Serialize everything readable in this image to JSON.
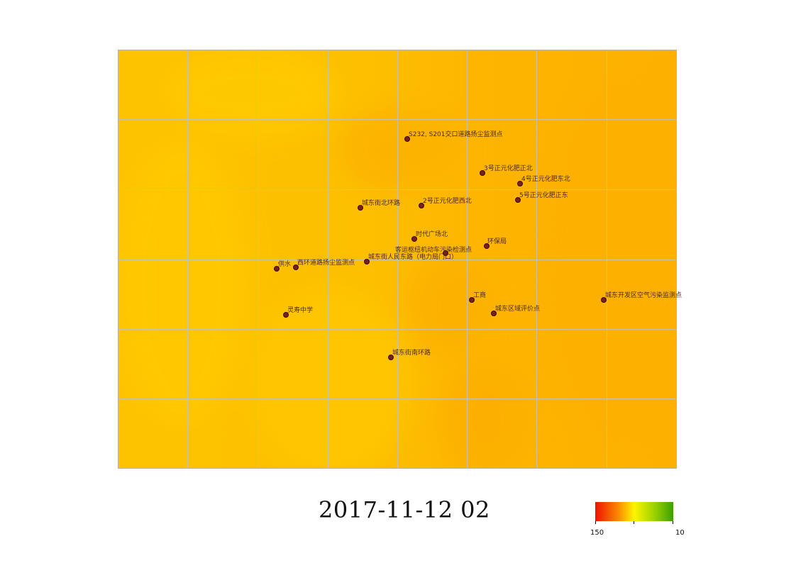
{
  "map": {
    "field_colors": {
      "base": "#fdbd00",
      "light": "#ffc800",
      "dark": "#fdb000",
      "grid": "#c8c0a8"
    },
    "stations": [
      {
        "id": "s232",
        "label": "S232, S201交口道路扬尘监测点"
      },
      {
        "id": "hz3",
        "label": "3号正元化肥正北"
      },
      {
        "id": "hz4",
        "label": "4号正元化肥东北"
      },
      {
        "id": "hz5",
        "label": "5号正元化肥正东"
      },
      {
        "id": "hz2",
        "label": "2号正元化肥西北"
      },
      {
        "id": "cdbh",
        "label": "城东街北环路"
      },
      {
        "id": "sdgc",
        "label": "时代广场北"
      },
      {
        "id": "hbj",
        "label": "环保局"
      },
      {
        "id": "kyzz",
        "label": "客运枢纽机动车污染检测点"
      },
      {
        "id": "rmdl",
        "label": "城东街人民东路（电力局门口）"
      },
      {
        "id": "gs",
        "label": "供水"
      },
      {
        "id": "xhdl",
        "label": "西环道路扬尘监测点"
      },
      {
        "id": "gsj",
        "label": "工商"
      },
      {
        "id": "kfq",
        "label": "城东开发区空气污染监测点"
      },
      {
        "id": "cdpj",
        "label": "城东区域评价点"
      },
      {
        "id": "lszx",
        "label": "灵寿中学"
      },
      {
        "id": "cdnh",
        "label": "城东街南环路"
      }
    ]
  },
  "timestamp": "2017-11-12 02",
  "legend": {
    "min_label": "150",
    "max_label": "10",
    "colors": [
      "#ee1100",
      "#fb8c00",
      "#fff400",
      "#9ed400",
      "#3aa000"
    ]
  }
}
